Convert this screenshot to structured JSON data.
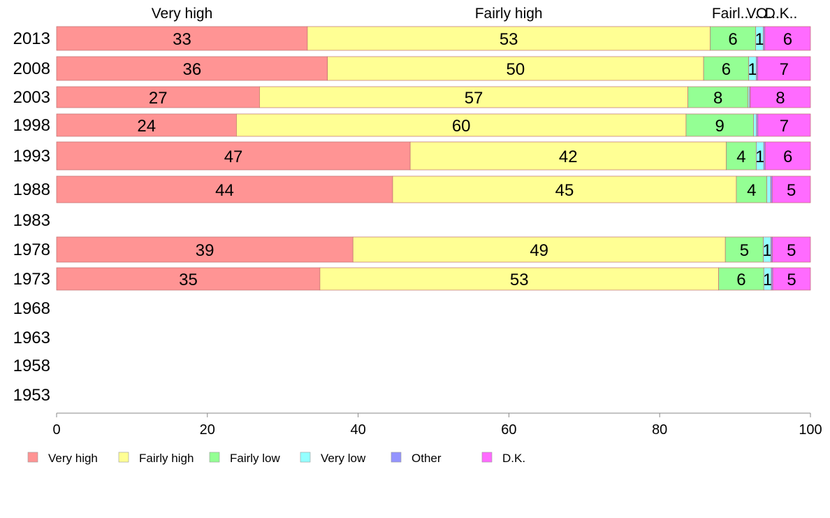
{
  "chart_data": {
    "type": "bar",
    "orientation": "horizontal",
    "stacked": true,
    "years": [
      "2013",
      "2008",
      "2003",
      "1998",
      "1993",
      "1988",
      "1983",
      "1978",
      "1973",
      "1968",
      "1963",
      "1958",
      "1953"
    ],
    "series": [
      {
        "name": "Very high",
        "color": "#ff9494",
        "values": [
          33,
          36,
          27,
          24,
          47,
          44,
          null,
          39,
          35,
          null,
          null,
          null,
          null
        ],
        "labels": [
          "33",
          "36",
          "27",
          "24",
          "47",
          "44",
          "",
          "39",
          "35",
          "",
          "",
          "",
          ""
        ]
      },
      {
        "name": "Fairly high",
        "color": "#ffff94",
        "values": [
          53,
          50,
          57,
          60,
          42,
          45,
          null,
          49,
          53,
          null,
          null,
          null,
          null
        ],
        "labels": [
          "53",
          "50",
          "57",
          "60",
          "42",
          "45",
          "",
          "49",
          "53",
          "",
          "",
          "",
          ""
        ]
      },
      {
        "name": "Fairly low",
        "color": "#94ff94",
        "values": [
          6,
          6,
          8,
          9,
          4,
          4,
          null,
          5,
          6,
          null,
          null,
          null,
          null
        ],
        "labels": [
          "6",
          "6",
          "8",
          "9",
          "4",
          "4",
          "",
          "5",
          "6",
          "",
          "",
          "",
          ""
        ]
      },
      {
        "name": "Very low",
        "color": "#94ffff",
        "values": [
          1,
          1,
          0.2,
          0.4,
          1,
          0.5,
          null,
          1,
          1,
          null,
          null,
          null,
          null
        ],
        "labels": [
          "1",
          "1",
          "",
          "",
          "1",
          "",
          "",
          "1",
          "1",
          "",
          "",
          "",
          ""
        ]
      },
      {
        "name": "Other",
        "color": "#9494ff",
        "values": [
          0.2,
          0.2,
          0.1,
          0.2,
          0.2,
          0.2,
          null,
          0.2,
          0.2,
          null,
          null,
          null,
          null
        ],
        "labels": [
          "",
          "",
          "",
          "",
          "",
          "",
          "",
          "",
          "",
          "",
          "",
          "",
          ""
        ]
      },
      {
        "name": "D.K.",
        "color": "#ff6bff",
        "values": [
          6,
          7,
          8,
          7,
          6,
          5,
          null,
          5,
          5,
          null,
          null,
          null,
          null
        ],
        "labels": [
          "6",
          "7",
          "8",
          "7",
          "6",
          "5",
          "",
          "5",
          "5",
          "",
          "",
          "",
          ""
        ]
      }
    ],
    "top_labels": [
      "Very high",
      "Fairly high",
      "Fairl...",
      "V...",
      "O...",
      "D.K.."
    ],
    "xlim": [
      0,
      100
    ],
    "xticks": [
      0,
      20,
      40,
      60,
      80,
      100
    ],
    "legend": [
      "Very high",
      "Fairly high",
      "Fairly low",
      "Very low",
      "Other",
      "D.K."
    ],
    "legend_position": "bottom",
    "grid": false
  }
}
